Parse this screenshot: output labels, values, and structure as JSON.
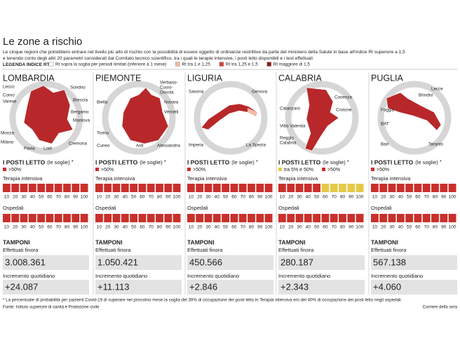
{
  "header": {
    "title": "Le zone a rischio",
    "subtitle": [
      "Le cinque regioni che potrebbero entrare nel livello più alto di rischio con la possibilità di essere oggetto di ordinanze restrittive da parte del ministero della Salute in base all'indice Rt superiore a 1,5",
      "e tenendo conto degli altri 20 parametri considerati dal Comitato tecnico scientifico, tra i quali le terapie intensive, i posti letto disponibili e i test effettuati"
    ],
    "legend_title": "LEGENDA INDICE RT",
    "legend": [
      {
        "label": "Rt sopra la soglia per periodi limitati (inferiore a 1 mese)",
        "color": "#ffffff"
      },
      {
        "label": "Rt tra 1 e 1,25",
        "color": "#f2b9a6"
      },
      {
        "label": "Rt tra 1,25 e 1,5",
        "color": "#d1433a"
      },
      {
        "label": "Rt maggiore di 1,5",
        "color": "#8a1c1c"
      }
    ]
  },
  "labels": {
    "beds": "I POSTI LETTO",
    "beds_note": "(le soglie)",
    "asterisk": "*",
    "icu": "Terapia intensiva",
    "hospitals": "Ospedali",
    "tests": "TAMPONI",
    "tests_total": "Effettuati finora",
    "tests_daily": "Incremento quotidiano",
    "scale": [
      10,
      20,
      30,
      40,
      50,
      60,
      70,
      80,
      90,
      100
    ]
  },
  "regions": [
    {
      "name": "LOMBARDIA",
      "places": [
        "Lecco",
        "Sondrio",
        "Como",
        "Varese",
        "Brescia",
        "Bergamo",
        "Mantova",
        "Monza",
        "Milano",
        "Pavia",
        "Lodi",
        "Cremona"
      ],
      "thresholds": [
        {
          "label": ">50%",
          "color": "#c9302c"
        }
      ],
      "icu": [
        "#c9302c",
        "#c9302c",
        "#c9302c",
        "#c9302c",
        "#c9302c",
        "#c9302c",
        "#c9302c",
        "#c9302c",
        "#c9302c",
        "#c9302c"
      ],
      "hospitals": [
        "#c9302c",
        "#c9302c",
        "#c9302c",
        "#c9302c",
        "#c9302c",
        "#c9302c",
        "#c9302c",
        "#c9302c",
        "#c9302c",
        "#c9302c"
      ],
      "tests_total": "3.008.361",
      "tests_daily": "+24.087"
    },
    {
      "name": "PIEMONTE",
      "places": [
        [
          "Verbano-",
          "Cusio-",
          "Ossola"
        ],
        "Biella",
        "Novara",
        "Vercelli",
        "Torino",
        "Cuneo",
        "Asti",
        "Alessandria"
      ],
      "thresholds": [
        {
          "label": ">50%",
          "color": "#c9302c"
        }
      ],
      "icu": [
        "#c9302c",
        "#c9302c",
        "#c9302c",
        "#c9302c",
        "#c9302c",
        "#c9302c",
        "#c9302c",
        "#c9302c",
        "#c9302c",
        "#c9302c"
      ],
      "hospitals": [
        "#c9302c",
        "#c9302c",
        "#c9302c",
        "#c9302c",
        "#c9302c",
        "#c9302c",
        "#c9302c",
        "#c9302c",
        "#c9302c",
        "#c9302c"
      ],
      "tests_total": "1.050.421",
      "tests_daily": "+11.113"
    },
    {
      "name": "LIGURIA",
      "places": [
        "Savona",
        "Genova",
        "Imperia",
        "La Spezia"
      ],
      "thresholds": [
        {
          "label": ">50%",
          "color": "#c9302c"
        }
      ],
      "icu": [
        "#c9302c",
        "#c9302c",
        "#c9302c",
        "#c9302c",
        "#c9302c",
        "#c9302c",
        "#c9302c",
        "#c9302c",
        "#c9302c",
        "#c9302c"
      ],
      "hospitals": [
        "#c9302c",
        "#c9302c",
        "#c9302c",
        "#c9302c",
        "#c9302c",
        "#c9302c",
        "#c9302c",
        "#c9302c",
        "#c9302c",
        "#c9302c"
      ],
      "tests_total": "450.566",
      "tests_daily": "+2.846"
    },
    {
      "name": "CALABRIA",
      "places": [
        "Cosenza",
        "Catanzaro",
        "Crotone",
        "Vibo Valentia",
        [
          "Reggio",
          "Calabria"
        ]
      ],
      "thresholds": [
        {
          "label": "tra 5% e 50%",
          "color": "#e6c94a"
        },
        {
          "label": ">50%",
          "color": "#c9302c"
        }
      ],
      "icu": [
        "#c9302c",
        "#c9302c",
        "#c9302c",
        "#c9302c",
        "#c9302c",
        "#e6c94a",
        "#e6c94a",
        "#e6c94a",
        "#e6c94a",
        "#e6c94a"
      ],
      "hospitals": [
        "#c9302c",
        "#c9302c",
        "#c9302c",
        "#c9302c",
        "#c9302c",
        "#c9302c",
        "#c9302c",
        "#c9302c",
        "#c9302c",
        "#c9302c"
      ],
      "tests_total": "280.187",
      "tests_daily": "+2.343"
    },
    {
      "name": "PUGLIA",
      "places": [
        "Lecce",
        "Brindisi",
        "Foggia",
        "BAT",
        "Bari",
        "Taranto"
      ],
      "thresholds": [
        {
          "label": ">50%",
          "color": "#c9302c"
        }
      ],
      "icu": [
        "#c9302c",
        "#c9302c",
        "#c9302c",
        "#c9302c",
        "#c9302c",
        "#c9302c",
        "#c9302c",
        "#c9302c",
        "#c9302c",
        "#c9302c"
      ],
      "hospitals": [
        "#c9302c",
        "#c9302c",
        "#c9302c",
        "#c9302c",
        "#c9302c",
        "#c9302c",
        "#c9302c",
        "#c9302c",
        "#c9302c",
        "#c9302c"
      ],
      "tests_total": "567.138",
      "tests_daily": "+4.060"
    }
  ],
  "footer": {
    "note": "* La percentuale di probabilità per pazienti Covid-19 di superare nel prossimo mese la soglia del 30% di occupazione dei posti letto in Terapia intensiva e/o del 40% di occupazione dei posti letto negli ospedali",
    "source": "Fonte: Istituto superiore di sanità e Protezione civile",
    "credit": "Corriere della sera"
  }
}
